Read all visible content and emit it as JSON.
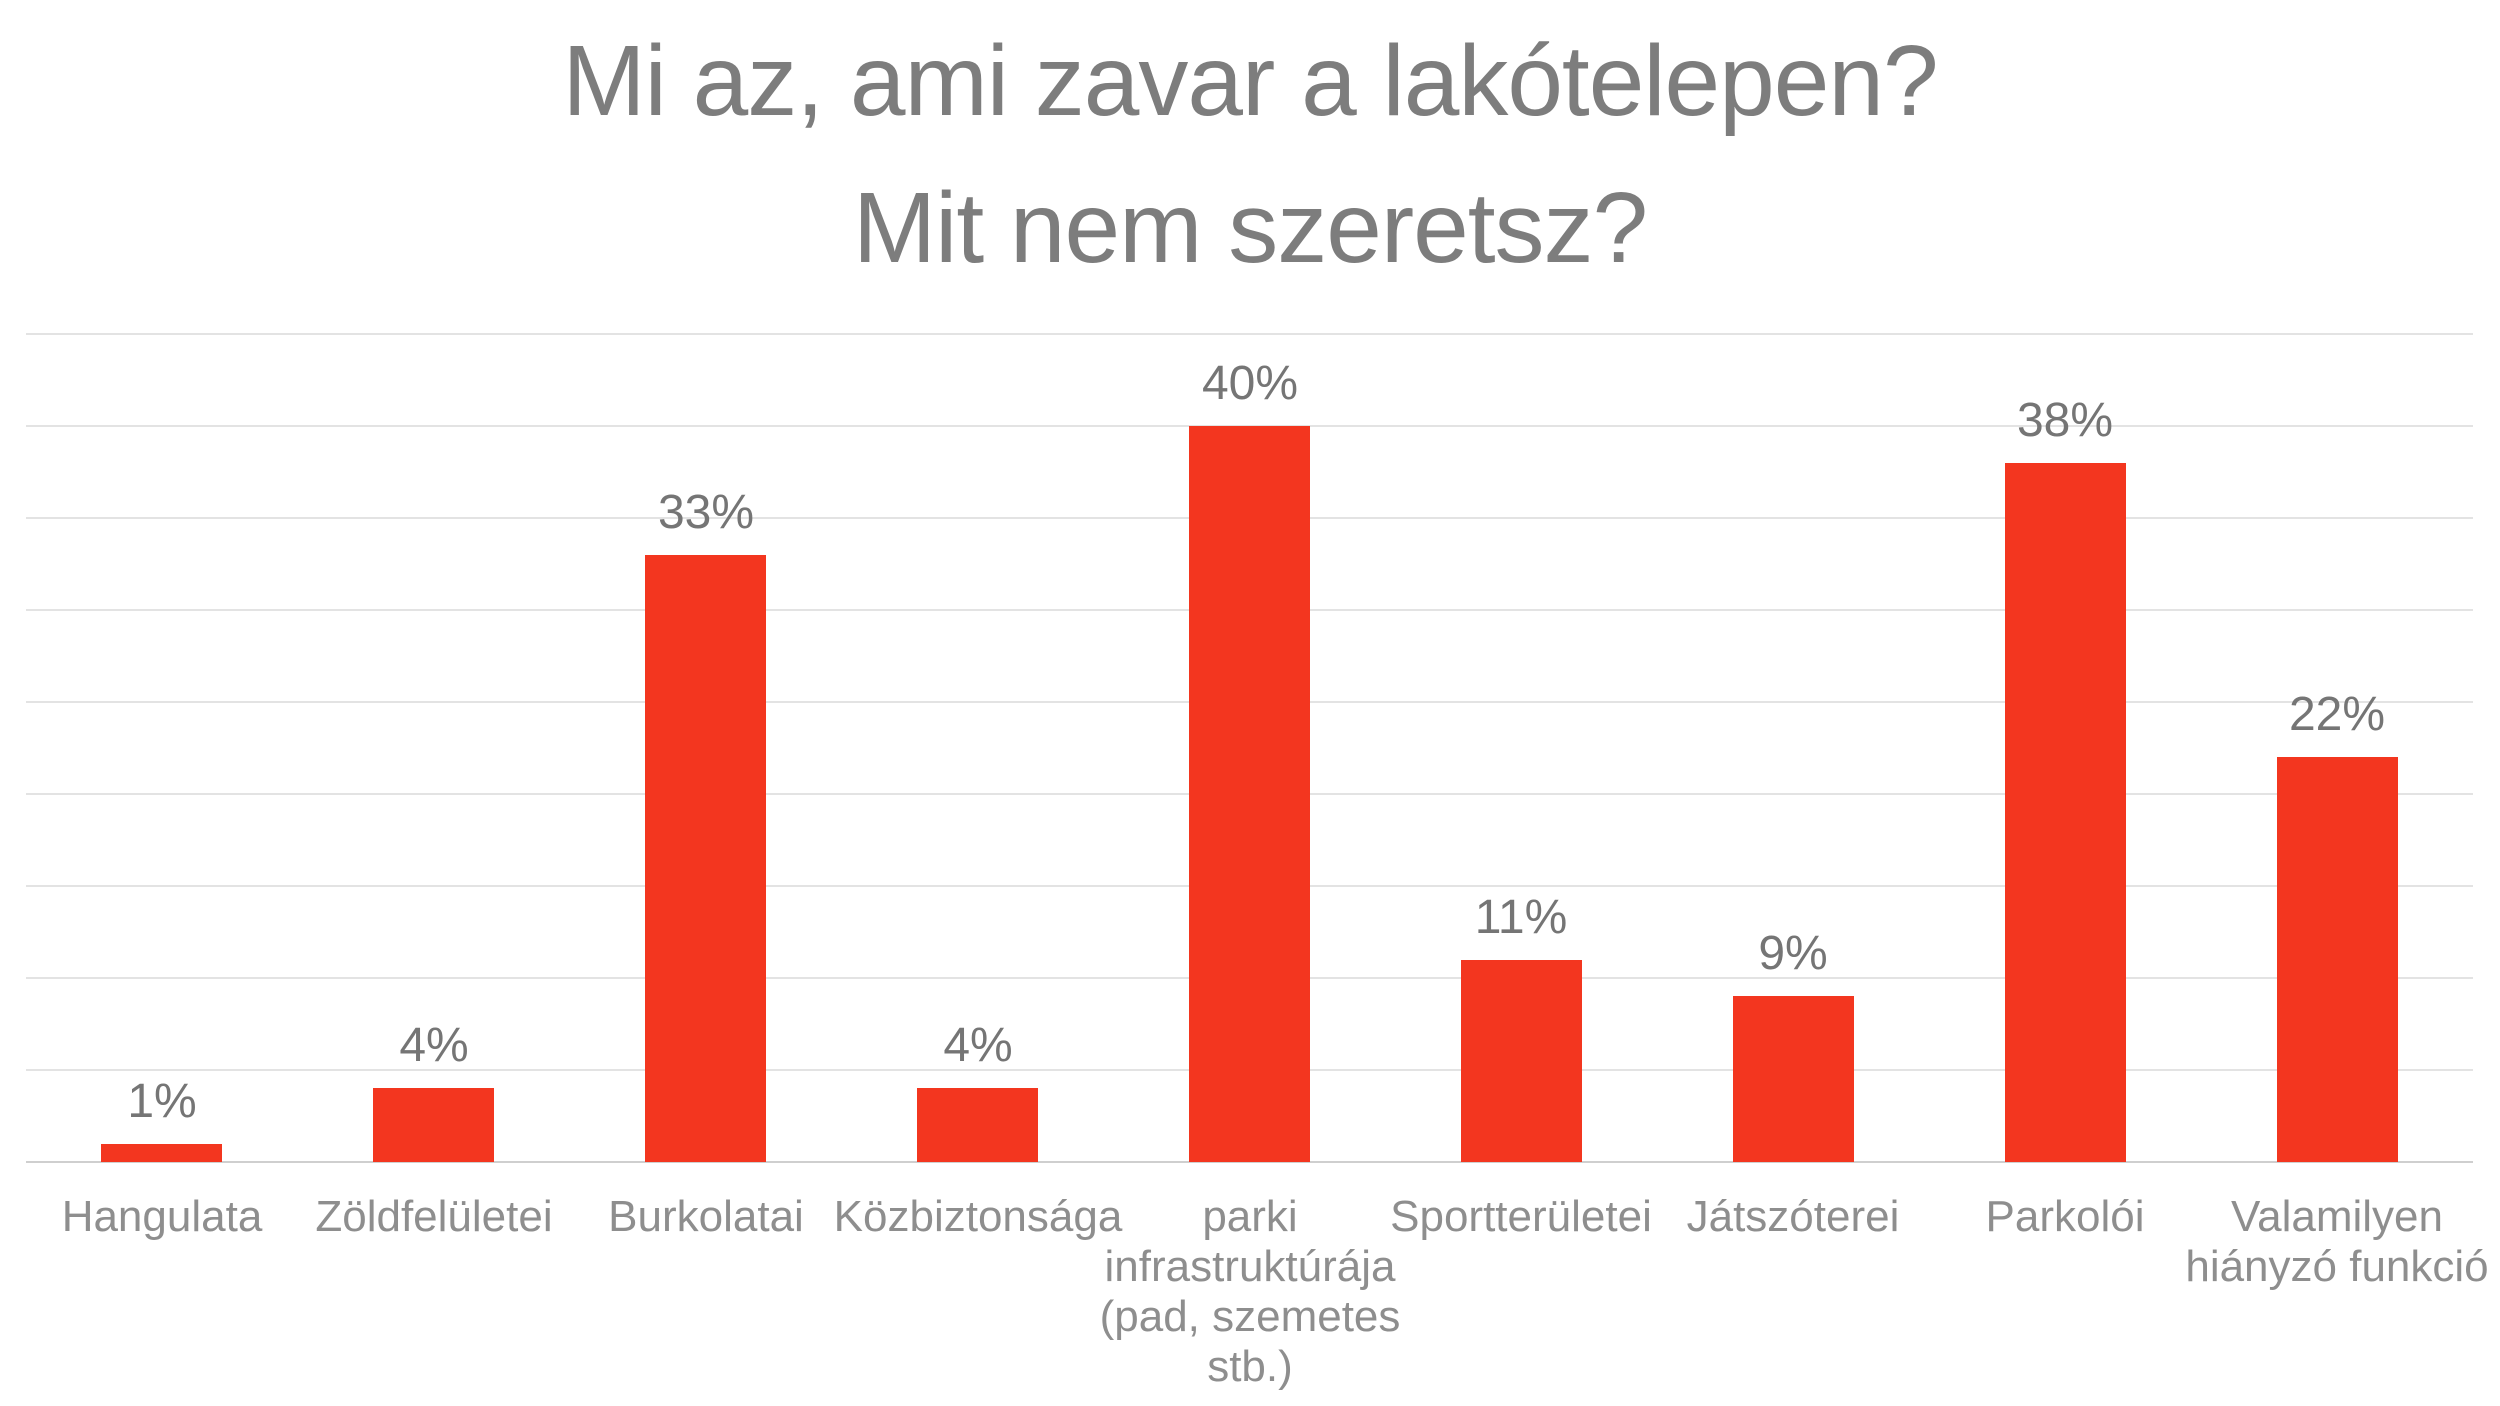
{
  "chart_data": {
    "type": "bar",
    "title_lines": [
      "Mi az, ami zavar a lakótelepen?",
      "Mit nem szeretsz?"
    ],
    "categories": [
      "Hangulata",
      "Zöldfelületei",
      "Burkolatai",
      "Közbiztonsága",
      "parki infrastruktúrája (pad, szemetes stb.)",
      "Sportterületei",
      "Játszóterei",
      "Parkolói",
      "Valamilyen hiányzó funkció"
    ],
    "values": [
      1,
      4,
      33,
      4,
      40,
      11,
      9,
      38,
      22
    ],
    "value_labels": [
      "1%",
      "4%",
      "33%",
      "4%",
      "40%",
      "11%",
      "9%",
      "38%",
      "22%"
    ],
    "unit": "%",
    "xlabel": "",
    "ylabel": "",
    "ylim": [
      0,
      45
    ],
    "grid_step": 5,
    "grid": true,
    "legend": false,
    "axis_tick_labels_visible": false,
    "colors": {
      "bar": "#f3361f",
      "grid_line": "#e3e3e3",
      "axis_line": "#cfcfcf",
      "title_text": "#7d7d7d",
      "value_label_text": "#757575",
      "category_label_text": "#8e8e8e",
      "background": "#ffffff"
    }
  }
}
